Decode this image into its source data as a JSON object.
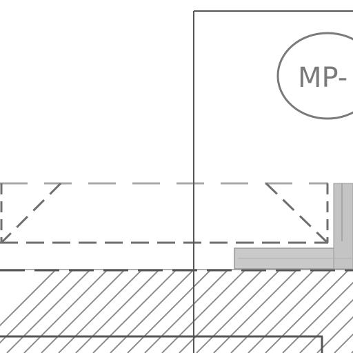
{
  "drawing": {
    "tag_label": "MP-"
  },
  "colors": {
    "background": "#ffffff",
    "line_dark": "#555555",
    "line_mid": "#6e6e6e",
    "line_light": "#a8a8a8",
    "hatch": "#8c8c8c",
    "fill_gray": "#c4c4c4",
    "fill_light": "#d6d6d6"
  }
}
